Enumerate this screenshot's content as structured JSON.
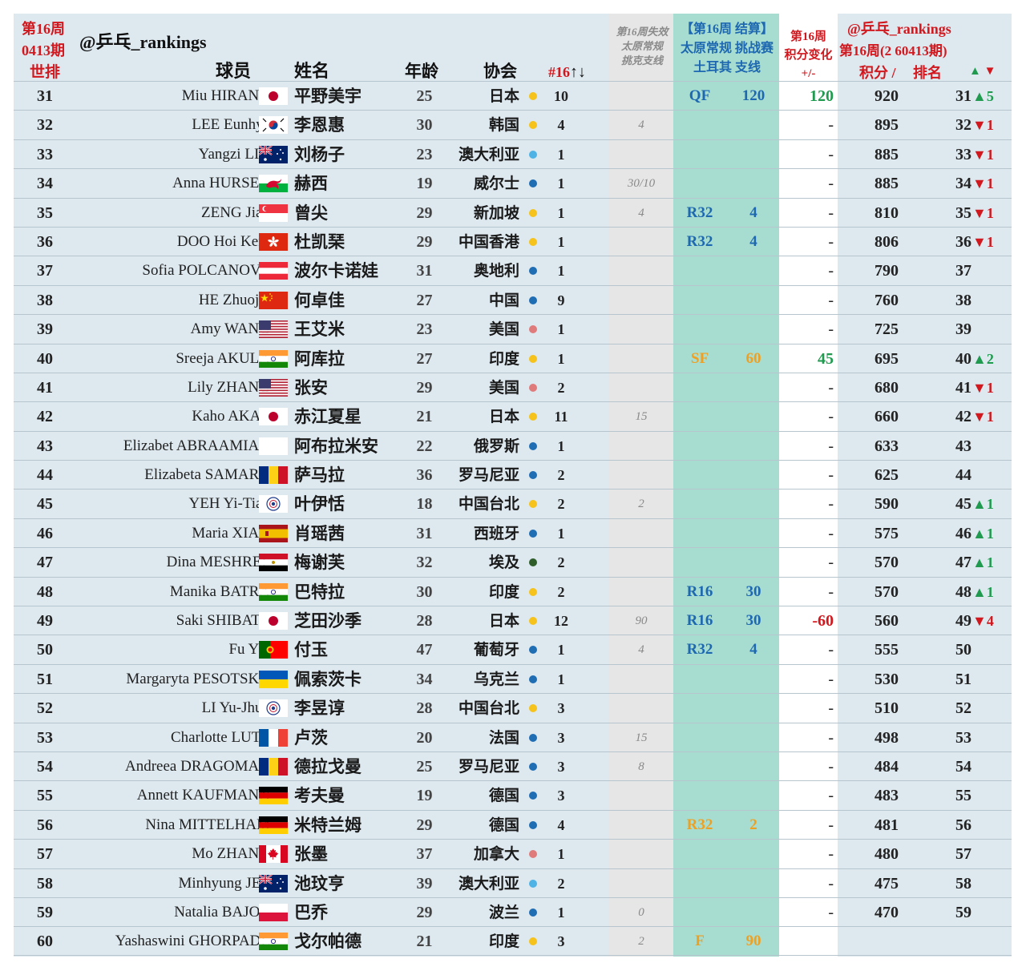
{
  "header": {
    "week_label": "第16周",
    "period_label": "0413期",
    "world_rank": "世排",
    "handle": "@乒乓_rankings",
    "col_player": "球员",
    "col_name": "姓名",
    "col_age": "年龄",
    "col_assoc": "协会",
    "col_n16": "#16",
    "col_n16_arrows": "↑↓",
    "lost_line1": "第16周失效",
    "lost_line2": "太原常规",
    "lost_line3": "挑克支线",
    "result_line1": "【第16周 结算】",
    "result_line2": "太原常规 挑战赛",
    "result_line3": "土耳其 支线",
    "change_line1": "第16周",
    "change_line2": "积分变化",
    "change_line3": "+/-",
    "right_handle": "@乒乓_rankings",
    "right_period": "第16周(2 60413期)",
    "right_points": "积分 /",
    "right_rank": "排名",
    "right_arrows_up": "▲",
    "right_arrows_down": "▼"
  },
  "colors": {
    "gold": "#f5c31c",
    "blue": "#1f6db3",
    "lightblue": "#4fb3e6",
    "pink": "#e07b7b",
    "darkgreen": "#2f5e2a",
    "row_bg": "#dde8ef",
    "teal_col": "#a7dcd0",
    "gray_col": "#e6e6e6"
  },
  "rows": [
    {
      "wr": "31",
      "en": "Miu HIRANO",
      "flag": "jp",
      "cn": "平野美宇",
      "age": "25",
      "assoc": "日本",
      "dot": "gold",
      "n16": "10",
      "lost": "",
      "rnd": "QF",
      "rnd_color": "blue",
      "rpts": "120",
      "chg": "120",
      "chg_color": "green",
      "pts": "920",
      "rk": "31",
      "mv": "▲5",
      "mv_dir": "up"
    },
    {
      "wr": "32",
      "en": "LEE Eunhye",
      "flag": "kr",
      "cn": "李恩惠",
      "age": "30",
      "assoc": "韩国",
      "dot": "gold",
      "n16": "4",
      "lost": "4",
      "rnd": "",
      "rnd_color": "",
      "rpts": "",
      "chg": "-",
      "chg_color": "",
      "pts": "895",
      "rk": "32",
      "mv": "▼1",
      "mv_dir": "down"
    },
    {
      "wr": "33",
      "en": "Yangzi LIU",
      "flag": "au",
      "cn": "刘杨子",
      "age": "23",
      "assoc": "澳大利亚",
      "dot": "lightblue",
      "n16": "1",
      "lost": "",
      "rnd": "",
      "rnd_color": "",
      "rpts": "",
      "chg": "-",
      "chg_color": "",
      "pts": "885",
      "rk": "33",
      "mv": "▼1",
      "mv_dir": "down"
    },
    {
      "wr": "34",
      "en": "Anna HURSEY",
      "flag": "wales",
      "cn": "赫西",
      "age": "19",
      "assoc": "威尔士",
      "dot": "blue",
      "n16": "1",
      "lost": "30/10",
      "rnd": "",
      "rnd_color": "",
      "rpts": "",
      "chg": "-",
      "chg_color": "",
      "pts": "885",
      "rk": "34",
      "mv": "▼1",
      "mv_dir": "down"
    },
    {
      "wr": "35",
      "en": "ZENG Jian",
      "flag": "sg",
      "cn": "曾尖",
      "age": "29",
      "assoc": "新加坡",
      "dot": "gold",
      "n16": "1",
      "lost": "4",
      "rnd": "R32",
      "rnd_color": "blue",
      "rpts": "4",
      "chg": "-",
      "chg_color": "",
      "pts": "810",
      "rk": "35",
      "mv": "▼1",
      "mv_dir": "down"
    },
    {
      "wr": "36",
      "en": "DOO Hoi Kem",
      "flag": "hk",
      "cn": "杜凯琹",
      "age": "29",
      "assoc": "中国香港",
      "dot": "gold",
      "n16": "1",
      "lost": "",
      "rnd": "R32",
      "rnd_color": "blue",
      "rpts": "4",
      "chg": "-",
      "chg_color": "",
      "pts": "806",
      "rk": "36",
      "mv": "▼1",
      "mv_dir": "down"
    },
    {
      "wr": "37",
      "en": "Sofia POLCANOVA",
      "flag": "at",
      "cn": "波尔卡诺娃",
      "age": "31",
      "assoc": "奥地利",
      "dot": "blue",
      "n16": "1",
      "lost": "",
      "rnd": "",
      "rnd_color": "",
      "rpts": "",
      "chg": "-",
      "chg_color": "",
      "pts": "790",
      "rk": "37",
      "mv": "",
      "mv_dir": ""
    },
    {
      "wr": "38",
      "en": "HE Zhuojia",
      "flag": "cn",
      "cn": "何卓佳",
      "age": "27",
      "assoc": "中国",
      "dot": "blue",
      "n16": "9",
      "lost": "",
      "rnd": "",
      "rnd_color": "",
      "rpts": "",
      "chg": "-",
      "chg_color": "",
      "pts": "760",
      "rk": "38",
      "mv": "",
      "mv_dir": ""
    },
    {
      "wr": "39",
      "en": "Amy WANG",
      "flag": "us",
      "cn": "王艾米",
      "age": "23",
      "assoc": "美国",
      "dot": "pink",
      "n16": "1",
      "lost": "",
      "rnd": "",
      "rnd_color": "",
      "rpts": "",
      "chg": "-",
      "chg_color": "",
      "pts": "725",
      "rk": "39",
      "mv": "",
      "mv_dir": ""
    },
    {
      "wr": "40",
      "en": "Sreeja AKULA",
      "flag": "in",
      "cn": "阿库拉",
      "age": "27",
      "assoc": "印度",
      "dot": "gold",
      "n16": "1",
      "lost": "",
      "rnd": "SF",
      "rnd_color": "gold",
      "rpts": "60",
      "chg": "45",
      "chg_color": "green",
      "pts": "695",
      "rk": "40",
      "mv": "▲2",
      "mv_dir": "up"
    },
    {
      "wr": "41",
      "en": "Lily ZHANG",
      "flag": "us",
      "cn": "张安",
      "age": "29",
      "assoc": "美国",
      "dot": "pink",
      "n16": "2",
      "lost": "",
      "rnd": "",
      "rnd_color": "",
      "rpts": "",
      "chg": "-",
      "chg_color": "",
      "pts": "680",
      "rk": "41",
      "mv": "▼1",
      "mv_dir": "down"
    },
    {
      "wr": "42",
      "en": "Kaho AKAE",
      "flag": "jp",
      "cn": "赤江夏星",
      "age": "21",
      "assoc": "日本",
      "dot": "gold",
      "n16": "11",
      "lost": "15",
      "rnd": "",
      "rnd_color": "",
      "rpts": "",
      "chg": "-",
      "chg_color": "",
      "pts": "660",
      "rk": "42",
      "mv": "▼1",
      "mv_dir": "down"
    },
    {
      "wr": "43",
      "en": "Elizabet ABRAAMIAN",
      "flag": "none",
      "cn": "阿布拉米安",
      "age": "22",
      "assoc": "俄罗斯",
      "dot": "blue",
      "n16": "1",
      "lost": "",
      "rnd": "",
      "rnd_color": "",
      "rpts": "",
      "chg": "-",
      "chg_color": "",
      "pts": "633",
      "rk": "43",
      "mv": "",
      "mv_dir": ""
    },
    {
      "wr": "44",
      "en": "Elizabeta SAMARA",
      "flag": "ro",
      "cn": "萨马拉",
      "age": "36",
      "assoc": "罗马尼亚",
      "dot": "blue",
      "n16": "2",
      "lost": "",
      "rnd": "",
      "rnd_color": "",
      "rpts": "",
      "chg": "-",
      "chg_color": "",
      "pts": "625",
      "rk": "44",
      "mv": "",
      "mv_dir": ""
    },
    {
      "wr": "45",
      "en": "YEH Yi-Tian",
      "flag": "tpe",
      "cn": "叶伊恬",
      "age": "18",
      "assoc": "中国台北",
      "dot": "gold",
      "n16": "2",
      "lost": "2",
      "rnd": "",
      "rnd_color": "",
      "rpts": "",
      "chg": "-",
      "chg_color": "",
      "pts": "590",
      "rk": "45",
      "mv": "▲1",
      "mv_dir": "up"
    },
    {
      "wr": "46",
      "en": "Maria XIAO",
      "flag": "es",
      "cn": "肖瑶茜",
      "age": "31",
      "assoc": "西班牙",
      "dot": "blue",
      "n16": "1",
      "lost": "",
      "rnd": "",
      "rnd_color": "",
      "rpts": "",
      "chg": "-",
      "chg_color": "",
      "pts": "575",
      "rk": "46",
      "mv": "▲1",
      "mv_dir": "up"
    },
    {
      "wr": "47",
      "en": "Dina MESHREF",
      "flag": "eg",
      "cn": "梅谢芙",
      "age": "32",
      "assoc": "埃及",
      "dot": "darkgreen",
      "n16": "2",
      "lost": "",
      "rnd": "",
      "rnd_color": "",
      "rpts": "",
      "chg": "-",
      "chg_color": "",
      "pts": "570",
      "rk": "47",
      "mv": "▲1",
      "mv_dir": "up"
    },
    {
      "wr": "48",
      "en": "Manika BATRA",
      "flag": "in",
      "cn": "巴特拉",
      "age": "30",
      "assoc": "印度",
      "dot": "gold",
      "n16": "2",
      "lost": "",
      "rnd": "R16",
      "rnd_color": "blue",
      "rpts": "30",
      "chg": "-",
      "chg_color": "",
      "pts": "570",
      "rk": "48",
      "mv": "▲1",
      "mv_dir": "up"
    },
    {
      "wr": "49",
      "en": "Saki SHIBATA",
      "flag": "jp",
      "cn": "芝田沙季",
      "age": "28",
      "assoc": "日本",
      "dot": "gold",
      "n16": "12",
      "lost": "90",
      "rnd": "R16",
      "rnd_color": "blue",
      "rpts": "30",
      "chg": "-60",
      "chg_color": "red",
      "pts": "560",
      "rk": "49",
      "mv": "▼4",
      "mv_dir": "down"
    },
    {
      "wr": "50",
      "en": "Fu YU",
      "flag": "pt",
      "cn": "付玉",
      "age": "47",
      "assoc": "葡萄牙",
      "dot": "blue",
      "n16": "1",
      "lost": "4",
      "rnd": "R32",
      "rnd_color": "blue",
      "rpts": "4",
      "chg": "-",
      "chg_color": "",
      "pts": "555",
      "rk": "50",
      "mv": "",
      "mv_dir": ""
    },
    {
      "wr": "51",
      "en": "Margaryta PESOTSKA",
      "flag": "ua",
      "cn": "佩索茨卡",
      "age": "34",
      "assoc": "乌克兰",
      "dot": "blue",
      "n16": "1",
      "lost": "",
      "rnd": "",
      "rnd_color": "",
      "rpts": "",
      "chg": "-",
      "chg_color": "",
      "pts": "530",
      "rk": "51",
      "mv": "",
      "mv_dir": ""
    },
    {
      "wr": "52",
      "en": "LI Yu-Jhun",
      "flag": "tpe",
      "cn": "李昱谆",
      "age": "28",
      "assoc": "中国台北",
      "dot": "gold",
      "n16": "3",
      "lost": "",
      "rnd": "",
      "rnd_color": "",
      "rpts": "",
      "chg": "-",
      "chg_color": "",
      "pts": "510",
      "rk": "52",
      "mv": "",
      "mv_dir": ""
    },
    {
      "wr": "53",
      "en": "Charlotte LUTZ",
      "flag": "fr",
      "cn": "卢茨",
      "age": "20",
      "assoc": "法国",
      "dot": "blue",
      "n16": "3",
      "lost": "15",
      "rnd": "",
      "rnd_color": "",
      "rpts": "",
      "chg": "-",
      "chg_color": "",
      "pts": "498",
      "rk": "53",
      "mv": "",
      "mv_dir": ""
    },
    {
      "wr": "54",
      "en": "Andreea DRAGOMAN",
      "flag": "ro",
      "cn": "德拉戈曼",
      "age": "25",
      "assoc": "罗马尼亚",
      "dot": "blue",
      "n16": "3",
      "lost": "8",
      "rnd": "",
      "rnd_color": "",
      "rpts": "",
      "chg": "-",
      "chg_color": "",
      "pts": "484",
      "rk": "54",
      "mv": "",
      "mv_dir": ""
    },
    {
      "wr": "55",
      "en": "Annett KAUFMANN",
      "flag": "de",
      "cn": "考夫曼",
      "age": "19",
      "assoc": "德国",
      "dot": "blue",
      "n16": "3",
      "lost": "",
      "rnd": "",
      "rnd_color": "",
      "rpts": "",
      "chg": "-",
      "chg_color": "",
      "pts": "483",
      "rk": "55",
      "mv": "",
      "mv_dir": ""
    },
    {
      "wr": "56",
      "en": "Nina MITTELHAM",
      "flag": "de",
      "cn": "米特兰姆",
      "age": "29",
      "assoc": "德国",
      "dot": "blue",
      "n16": "4",
      "lost": "",
      "rnd": "R32",
      "rnd_color": "gold",
      "rpts": "2",
      "chg": "-",
      "chg_color": "",
      "pts": "481",
      "rk": "56",
      "mv": "",
      "mv_dir": ""
    },
    {
      "wr": "57",
      "en": "Mo ZHANG",
      "flag": "ca",
      "cn": "张墨",
      "age": "37",
      "assoc": "加拿大",
      "dot": "pink",
      "n16": "1",
      "lost": "",
      "rnd": "",
      "rnd_color": "",
      "rpts": "",
      "chg": "-",
      "chg_color": "",
      "pts": "480",
      "rk": "57",
      "mv": "",
      "mv_dir": ""
    },
    {
      "wr": "58",
      "en": "Minhyung JEE",
      "flag": "au",
      "cn": "池玟亨",
      "age": "39",
      "assoc": "澳大利亚",
      "dot": "lightblue",
      "n16": "2",
      "lost": "",
      "rnd": "",
      "rnd_color": "",
      "rpts": "",
      "chg": "-",
      "chg_color": "",
      "pts": "475",
      "rk": "58",
      "mv": "",
      "mv_dir": ""
    },
    {
      "wr": "59",
      "en": "Natalia BAJOR",
      "flag": "pl",
      "cn": "巴乔",
      "age": "29",
      "assoc": "波兰",
      "dot": "blue",
      "n16": "1",
      "lost": "0",
      "rnd": "",
      "rnd_color": "",
      "rpts": "",
      "chg": "-",
      "chg_color": "",
      "pts": "470",
      "rk": "59",
      "mv": "",
      "mv_dir": ""
    },
    {
      "wr": "60",
      "en": "Yashaswini GHORPADE",
      "flag": "in",
      "cn": "戈尔帕德",
      "age": "21",
      "assoc": "印度",
      "dot": "gold",
      "n16": "3",
      "lost": "2",
      "rnd": "F",
      "rnd_color": "gold",
      "rpts": "90",
      "chg": "",
      "chg_color": "",
      "pts": "",
      "rk": "",
      "mv": "",
      "mv_dir": ""
    }
  ]
}
